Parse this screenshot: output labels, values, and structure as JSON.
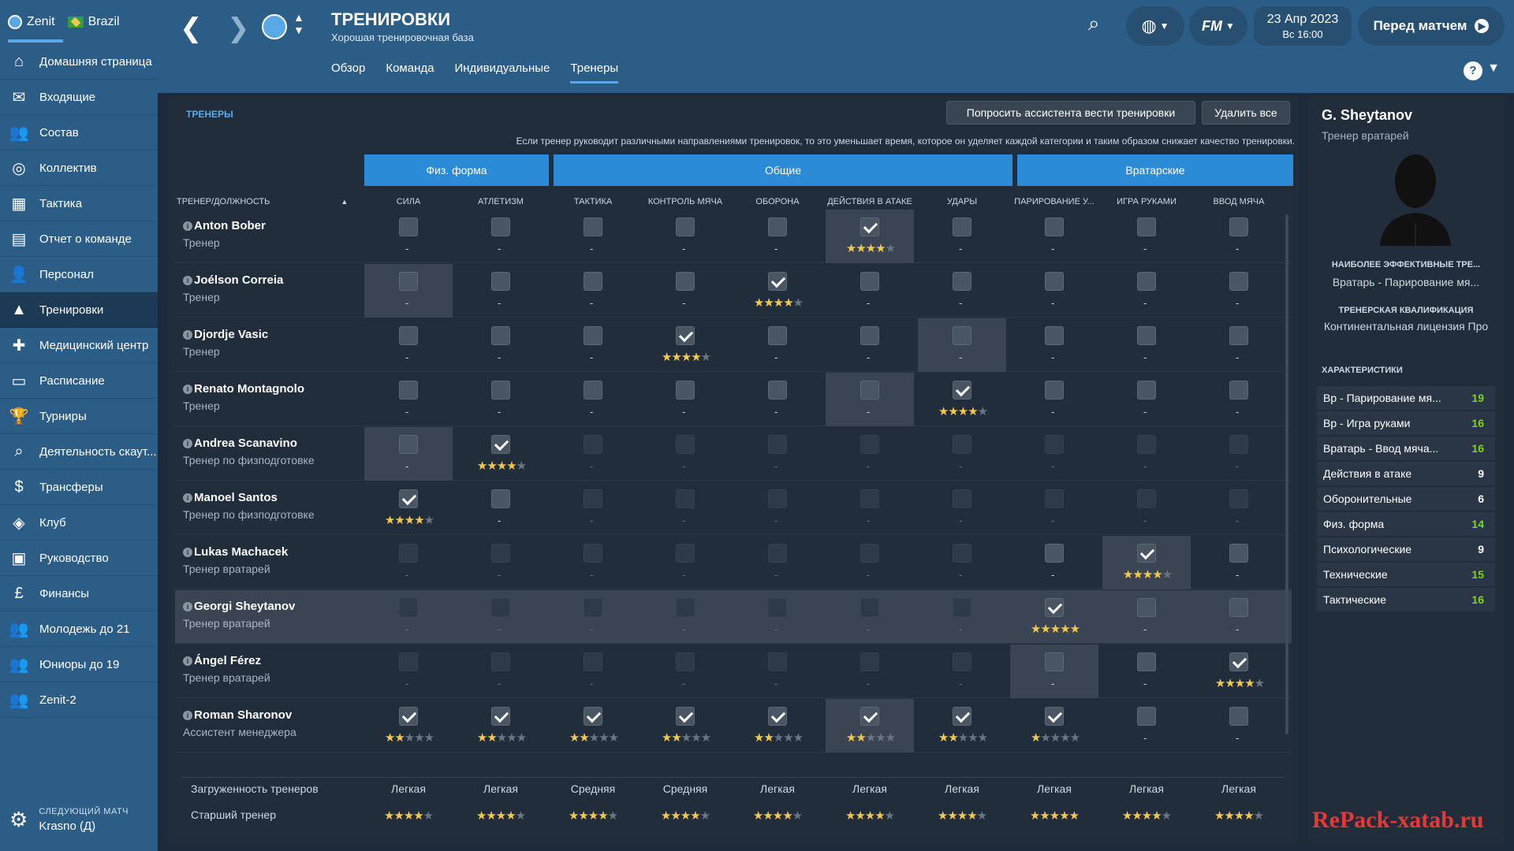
{
  "header": {
    "club": "Zenit",
    "nation": "Brazil",
    "title": "ТРЕНИРОВКИ",
    "subtitle": "Хорошая тренировочная база",
    "date": "23 Апр 2023",
    "day": "Вс 16:00",
    "continue": "Перед матчем",
    "fm_label": "FM"
  },
  "tabs": [
    "Обзор",
    "Команда",
    "Индивидуальные",
    "Тренеры"
  ],
  "sidebar": [
    {
      "label": "Домашняя страница",
      "icon": "home-icon",
      "glyph": "⌂"
    },
    {
      "label": "Входящие",
      "icon": "inbox-icon",
      "glyph": "✉"
    },
    {
      "label": "Состав",
      "icon": "squad-icon",
      "glyph": "👥"
    },
    {
      "label": "Коллектив",
      "icon": "dynamics-icon",
      "glyph": "◎"
    },
    {
      "label": "Тактика",
      "icon": "tactics-icon",
      "glyph": "▦"
    },
    {
      "label": "Отчет о команде",
      "icon": "report-icon",
      "glyph": "▤"
    },
    {
      "label": "Персонал",
      "icon": "staff-icon",
      "glyph": "👤"
    },
    {
      "label": "Тренировки",
      "icon": "training-icon",
      "glyph": "▲"
    },
    {
      "label": "Медицинский центр",
      "icon": "medical-icon",
      "glyph": "✚"
    },
    {
      "label": "Расписание",
      "icon": "calendar-icon",
      "glyph": "▭"
    },
    {
      "label": "Турниры",
      "icon": "trophy-icon",
      "glyph": "🏆"
    },
    {
      "label": "Деятельность скаут...",
      "icon": "scouting-icon",
      "glyph": "⌕"
    },
    {
      "label": "Трансферы",
      "icon": "transfers-icon",
      "glyph": "$"
    },
    {
      "label": "Клуб",
      "icon": "club-icon",
      "glyph": "◈"
    },
    {
      "label": "Руководство",
      "icon": "board-icon",
      "glyph": "▣"
    },
    {
      "label": "Финансы",
      "icon": "finance-icon",
      "glyph": "£"
    },
    {
      "label": "Молодежь до 21",
      "icon": "u21-icon",
      "glyph": "👥"
    },
    {
      "label": "Юниоры до 19",
      "icon": "u19-icon",
      "glyph": "👥"
    },
    {
      "label": "Zenit-2",
      "icon": "reserve-icon",
      "glyph": "👥"
    }
  ],
  "next_match": {
    "label": "СЛЕДУЮЩИЙ МАТЧ",
    "value": "Krasno (Д)"
  },
  "panel": {
    "section": "ТРЕНЕРЫ",
    "btn_assist": "Попросить ассистента вести тренировки",
    "btn_remove": "Удалить все",
    "info": "Если тренер руководит различными направлениями тренировок, то это уменьшает время, которое он уделяет каждой категории и таким образом снижает качество тренировки.",
    "groups": [
      "Физ. форма",
      "Общие",
      "Вратарские"
    ],
    "col_coach": "ТРЕНЕР/ДОЛЖНОСТЬ"
  },
  "columns": [
    "СИЛА",
    "АТЛЕТИЗМ",
    "ТАКТИКА",
    "КОНТРОЛЬ МЯЧА",
    "ОБОРОНА",
    "ДЕЙСТВИЯ В АТАКЕ",
    "УДАРЫ",
    "ПАРИРОВАНИЕ У...",
    "ИГРА РУКАМИ",
    "ВВОД МЯЧА"
  ],
  "coaches": [
    {
      "name": "Anton Bober",
      "role": "Тренер",
      "active": [
        1,
        1,
        1,
        1,
        1,
        1,
        1,
        1,
        1,
        1
      ],
      "checked": [
        0,
        0,
        0,
        0,
        0,
        1,
        0,
        0,
        0,
        0
      ],
      "stars": [
        null,
        null,
        null,
        null,
        null,
        4,
        null,
        null,
        null,
        null
      ],
      "hl": [
        0,
        0,
        0,
        0,
        0,
        1,
        0,
        0,
        0,
        0
      ]
    },
    {
      "name": "Joélson Correia",
      "role": "Тренер",
      "active": [
        1,
        1,
        1,
        1,
        1,
        1,
        1,
        1,
        1,
        1
      ],
      "checked": [
        0,
        0,
        0,
        0,
        1,
        0,
        0,
        0,
        0,
        0
      ],
      "stars": [
        null,
        null,
        null,
        null,
        3.5,
        null,
        null,
        null,
        null,
        null
      ],
      "hl": [
        1,
        0,
        0,
        0,
        0,
        0,
        0,
        0,
        0,
        0
      ]
    },
    {
      "name": "Djordje Vasic",
      "role": "Тренер",
      "active": [
        1,
        1,
        1,
        1,
        1,
        1,
        1,
        1,
        1,
        1
      ],
      "checked": [
        0,
        0,
        0,
        1,
        0,
        0,
        0,
        0,
        0,
        0
      ],
      "stars": [
        null,
        null,
        null,
        3.5,
        null,
        null,
        null,
        null,
        null,
        null
      ],
      "hl": [
        0,
        0,
        0,
        0,
        0,
        0,
        1,
        0,
        0,
        0
      ]
    },
    {
      "name": "Renato Montagnolo",
      "role": "Тренер",
      "active": [
        1,
        1,
        1,
        1,
        1,
        1,
        1,
        1,
        1,
        1
      ],
      "checked": [
        0,
        0,
        0,
        0,
        0,
        0,
        1,
        0,
        0,
        0
      ],
      "stars": [
        null,
        null,
        null,
        null,
        null,
        null,
        4,
        null,
        null,
        null
      ],
      "hl": [
        0,
        0,
        0,
        0,
        0,
        1,
        0,
        0,
        0,
        0
      ]
    },
    {
      "name": "Andrea Scanavino",
      "role": "Тренер по физподготовке",
      "active": [
        1,
        1,
        0,
        0,
        0,
        0,
        0,
        0,
        0,
        0
      ],
      "checked": [
        0,
        1,
        0,
        0,
        0,
        0,
        0,
        0,
        0,
        0
      ],
      "stars": [
        null,
        4,
        null,
        null,
        null,
        null,
        null,
        null,
        null,
        null
      ],
      "hl": [
        1,
        0,
        0,
        0,
        0,
        0,
        0,
        0,
        0,
        0
      ]
    },
    {
      "name": "Manoel Santos",
      "role": "Тренер по физподготовке",
      "active": [
        1,
        1,
        0,
        0,
        0,
        0,
        0,
        0,
        0,
        0
      ],
      "checked": [
        1,
        0,
        0,
        0,
        0,
        0,
        0,
        0,
        0,
        0
      ],
      "stars": [
        4,
        null,
        null,
        null,
        null,
        null,
        null,
        null,
        null,
        null
      ],
      "hl": [
        0,
        0,
        0,
        0,
        0,
        0,
        0,
        0,
        0,
        0
      ]
    },
    {
      "name": "Lukas Machacek",
      "role": "Тренер вратарей",
      "active": [
        0,
        0,
        0,
        0,
        0,
        0,
        0,
        1,
        1,
        1
      ],
      "checked": [
        0,
        0,
        0,
        0,
        0,
        0,
        0,
        0,
        1,
        0
      ],
      "stars": [
        null,
        null,
        null,
        null,
        null,
        null,
        null,
        null,
        4,
        null
      ],
      "hl": [
        0,
        0,
        0,
        0,
        0,
        0,
        0,
        0,
        1,
        0
      ]
    },
    {
      "name": "Georgi Sheytanov",
      "role": "Тренер вратарей",
      "active": [
        0,
        0,
        0,
        0,
        0,
        0,
        0,
        1,
        1,
        1
      ],
      "checked": [
        0,
        0,
        0,
        0,
        0,
        0,
        0,
        1,
        0,
        0
      ],
      "stars": [
        null,
        null,
        null,
        null,
        null,
        null,
        null,
        4.5,
        null,
        null
      ],
      "hl": [
        0,
        0,
        0,
        0,
        0,
        0,
        0,
        0,
        0,
        0
      ],
      "selected": true
    },
    {
      "name": "Ángel Férez",
      "role": "Тренер вратарей",
      "active": [
        0,
        0,
        0,
        0,
        0,
        0,
        0,
        1,
        1,
        1
      ],
      "checked": [
        0,
        0,
        0,
        0,
        0,
        0,
        0,
        0,
        0,
        1
      ],
      "stars": [
        null,
        null,
        null,
        null,
        null,
        null,
        null,
        null,
        null,
        4
      ],
      "hl": [
        0,
        0,
        0,
        0,
        0,
        0,
        0,
        1,
        0,
        0
      ]
    },
    {
      "name": "Roman Sharonov",
      "role": "Ассистент менеджера",
      "active": [
        1,
        1,
        1,
        1,
        1,
        1,
        1,
        1,
        1,
        1
      ],
      "checked": [
        1,
        1,
        1,
        1,
        1,
        1,
        1,
        1,
        0,
        0
      ],
      "stars": [
        1.5,
        1.5,
        2,
        2,
        2,
        2,
        2,
        1,
        null,
        null
      ],
      "hl": [
        0,
        0,
        0,
        0,
        0,
        1,
        0,
        0,
        0,
        0
      ]
    }
  ],
  "footer": {
    "workload_label": "Загруженность тренеров",
    "workload": [
      "Легкая",
      "Легкая",
      "Средняя",
      "Средняя",
      "Легкая",
      "Легкая",
      "Легкая",
      "Легкая",
      "Легкая",
      "Легкая"
    ],
    "head_label": "Старший тренер",
    "head_stars": [
      4,
      4,
      4,
      3.5,
      3.5,
      4,
      4,
      4.5,
      4,
      4
    ]
  },
  "profile": {
    "name": "G. Sheytanov",
    "role": "Тренер вратарей",
    "best_label": "НАИБОЛЕЕ ЭФФЕКТИВНЫЕ ТРЕ...",
    "best_value": "Вратарь - Парирование мя...",
    "qual_label": "ТРЕНЕРСКАЯ КВАЛИФИКАЦИЯ",
    "qual_value": "Континентальная лицензия Про",
    "attrs_label": "ХАРАКТЕРИСТИКИ",
    "attrs": [
      {
        "name": "Вр - Парирование мя...",
        "value": "19",
        "color": "#7ed321"
      },
      {
        "name": "Вр - Игра руками",
        "value": "16",
        "color": "#7ed321"
      },
      {
        "name": "Вратарь - Ввод мяча...",
        "value": "16",
        "color": "#7ed321"
      },
      {
        "name": "Действия в атаке",
        "value": "9",
        "color": "#ffffff"
      },
      {
        "name": "Оборонительные",
        "value": "6",
        "color": "#ffffff"
      },
      {
        "name": "Физ. форма",
        "value": "14",
        "color": "#7ed321"
      },
      {
        "name": "Психологические",
        "value": "9",
        "color": "#ffffff"
      },
      {
        "name": "Технические",
        "value": "15",
        "color": "#7ed321"
      },
      {
        "name": "Тактические",
        "value": "16",
        "color": "#7ed321"
      }
    ]
  },
  "watermark": "RePack-xatab.ru"
}
